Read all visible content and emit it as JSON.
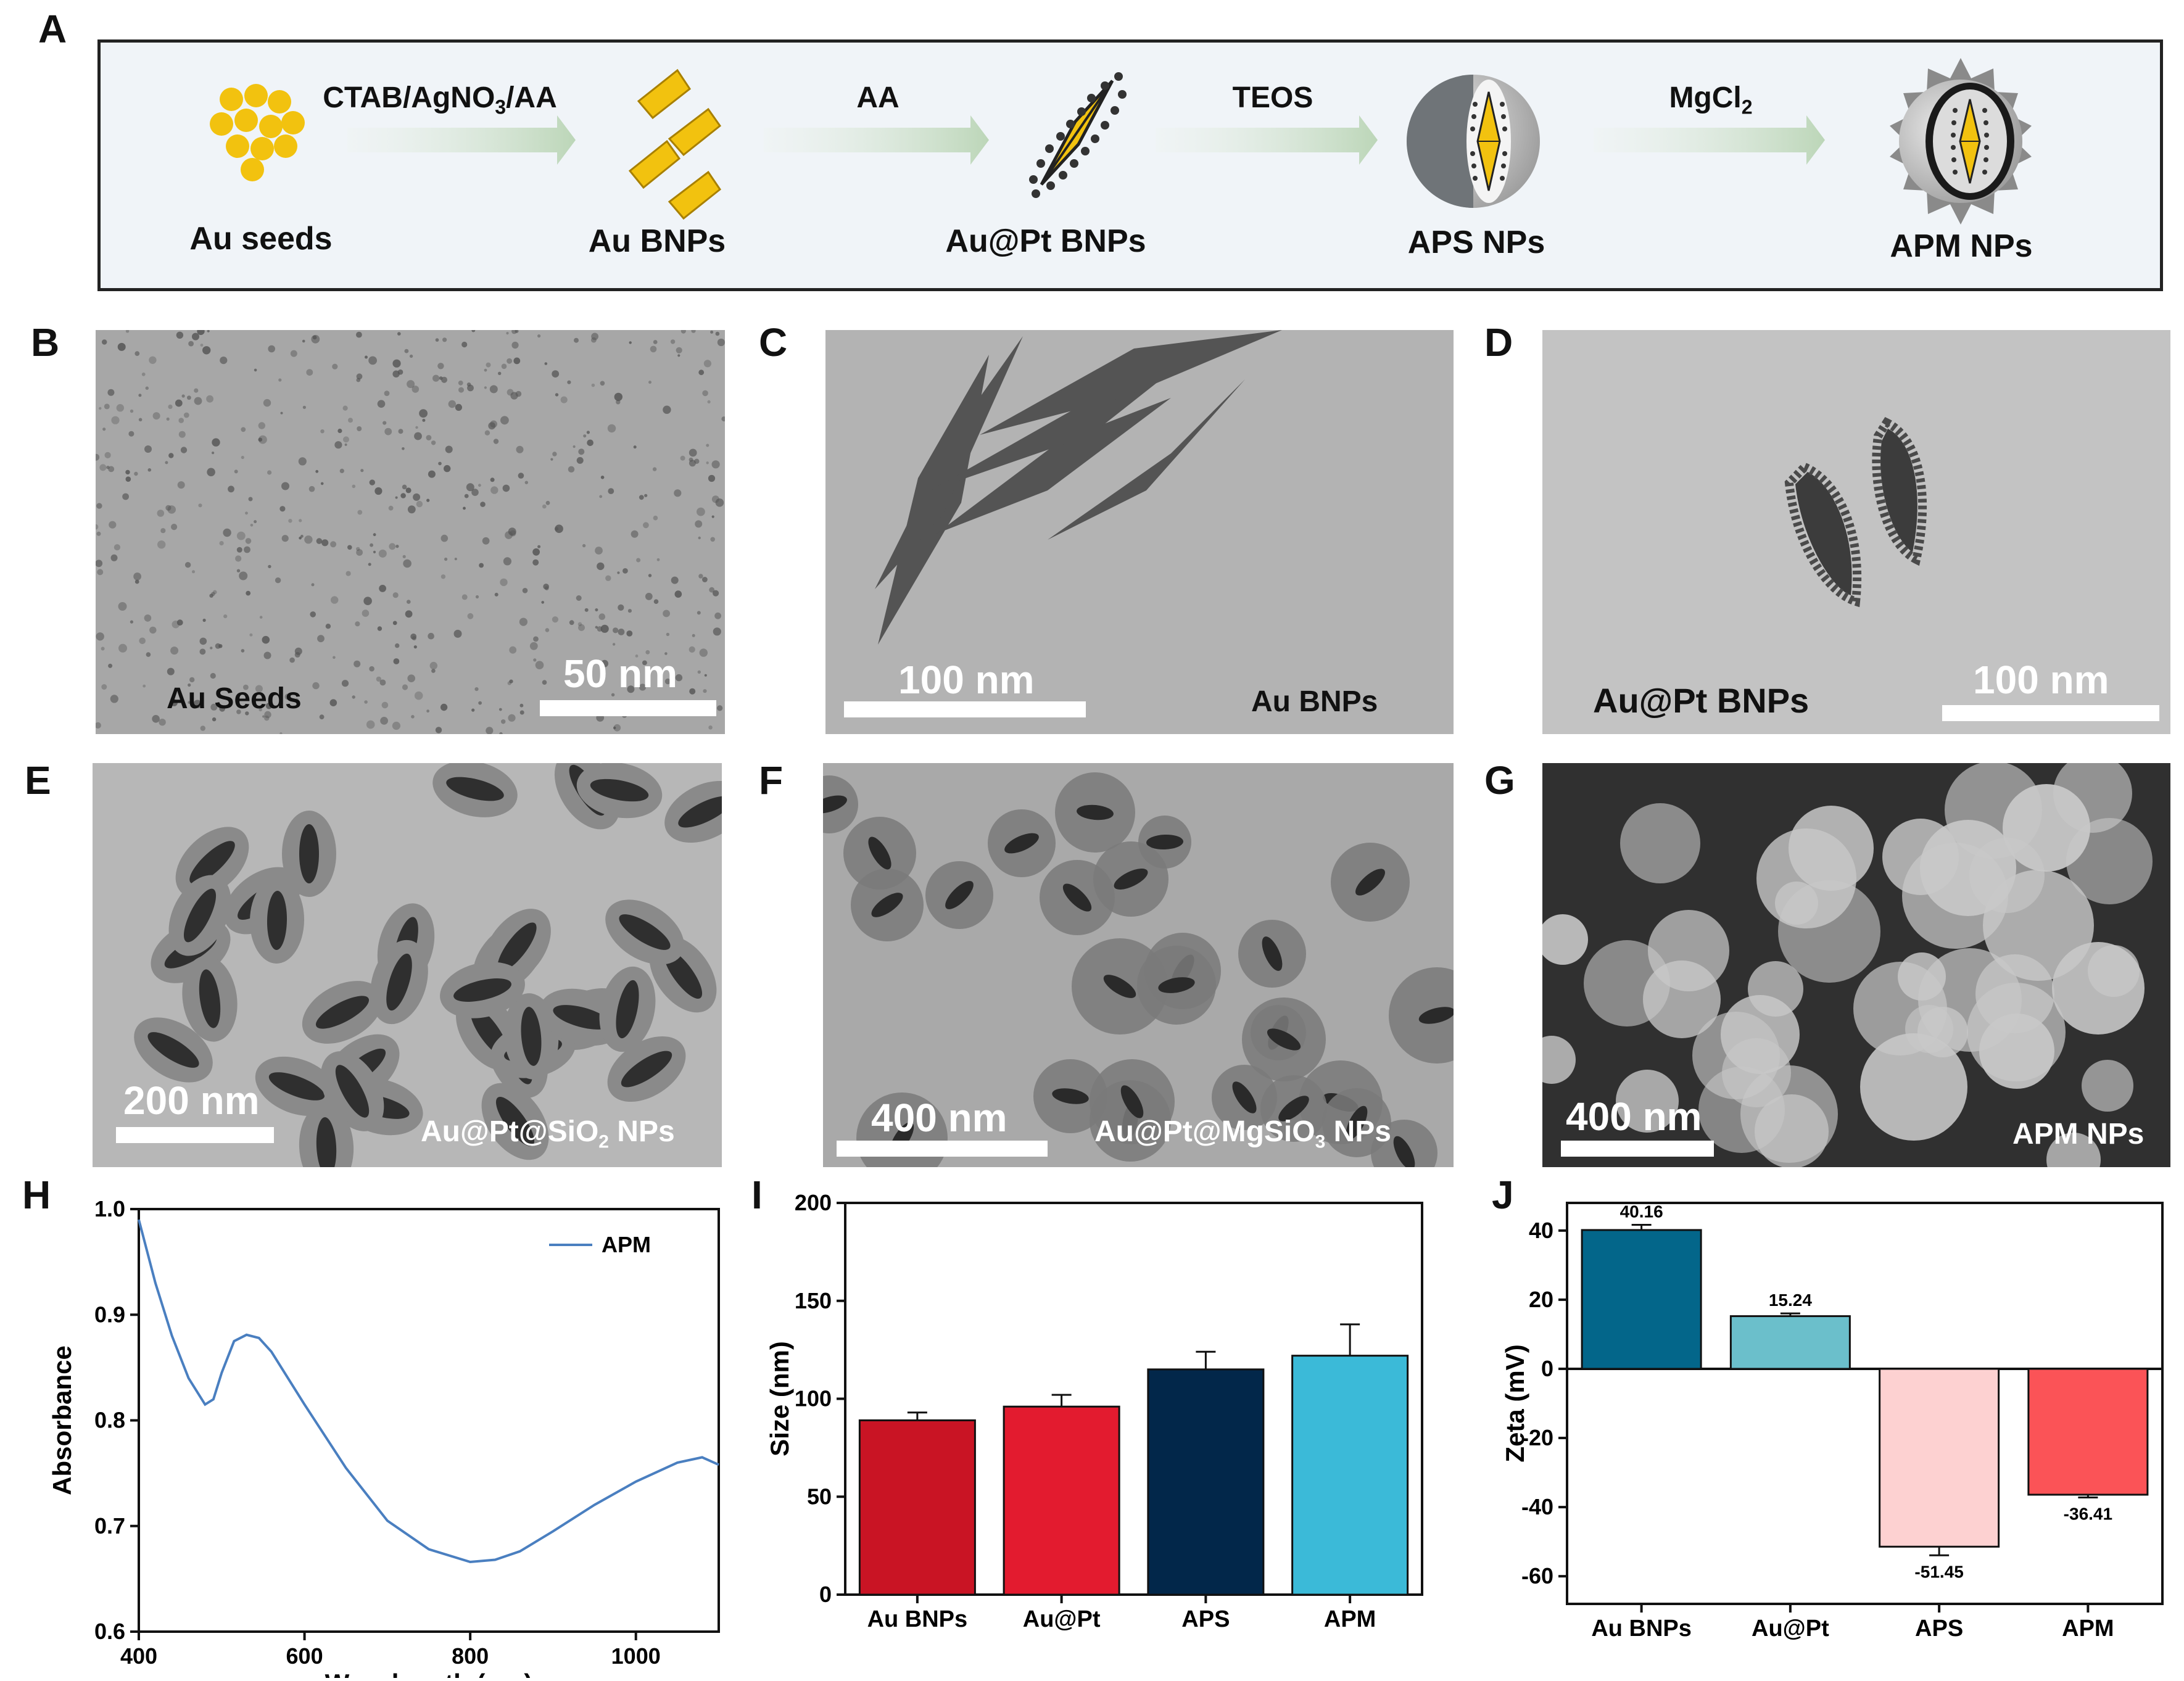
{
  "panels": {
    "A": "A",
    "B": "B",
    "C": "C",
    "D": "D",
    "E": "E",
    "F": "F",
    "G": "G",
    "H": "H",
    "I": "I",
    "J": "J"
  },
  "schematic": {
    "stages": [
      "Au seeds",
      "Au BNPs",
      "Au@Pt BNPs",
      "APS NPs",
      "APM NPs"
    ],
    "steps": [
      {
        "main": "CTAB/AgNO",
        "sub": "3",
        "tail": "/AA"
      },
      {
        "main": "AA",
        "sub": "",
        "tail": ""
      },
      {
        "main": "TEOS",
        "sub": "",
        "tail": ""
      },
      {
        "main": "MgCl",
        "sub": "2",
        "tail": ""
      }
    ],
    "colors": {
      "gold": "#f2c20f",
      "gold_edge": "#a88000",
      "arrow": "#c9dcc6",
      "platinum": "#444444",
      "shell": "#c8c8c8",
      "spikes": "#8a8a8a"
    }
  },
  "images": {
    "B": {
      "scale": "50 nm",
      "caption": "Au Seeds",
      "caption_color": "#111111"
    },
    "C": {
      "scale": "100 nm",
      "caption": "Au BNPs",
      "caption_color": "#111111"
    },
    "D": {
      "scale": "100 nm",
      "caption": "Au@Pt BNPs",
      "caption_color": "#111111"
    },
    "E": {
      "scale": "200 nm",
      "caption_main": "Au@Pt@SiO",
      "caption_sub": "2",
      "caption_tail": " NPs",
      "caption_color": "#ffffff"
    },
    "F": {
      "scale": "400 nm",
      "caption_main": "Au@Pt@MgSiO",
      "caption_sub": "3",
      "caption_tail": " NPs",
      "caption_color": "#ffffff"
    },
    "G": {
      "scale": "400 nm",
      "caption": "APM NPs",
      "caption_color": "#ffffff"
    }
  },
  "chart_data": [
    {
      "panel": "H",
      "type": "line",
      "xlabel": "Wavelength (nm)",
      "ylabel": "Absorbance",
      "xlim": [
        400,
        1100
      ],
      "ylim": [
        0.6,
        1.0
      ],
      "xticks": [
        400,
        600,
        800,
        1000
      ],
      "yticks": [
        0.6,
        0.7,
        0.8,
        0.9,
        1.0
      ],
      "legend_position": "top-right",
      "series": [
        {
          "name": "APM",
          "color": "#4a7fc0",
          "x": [
            400,
            420,
            440,
            460,
            480,
            490,
            500,
            515,
            530,
            545,
            560,
            600,
            650,
            700,
            750,
            800,
            830,
            860,
            900,
            950,
            1000,
            1050,
            1080,
            1100
          ],
          "y": [
            0.99,
            0.93,
            0.88,
            0.84,
            0.815,
            0.82,
            0.845,
            0.875,
            0.881,
            0.878,
            0.865,
            0.815,
            0.755,
            0.705,
            0.678,
            0.666,
            0.668,
            0.676,
            0.695,
            0.72,
            0.742,
            0.76,
            0.765,
            0.758
          ]
        }
      ]
    },
    {
      "panel": "I",
      "type": "bar",
      "ylabel": "Size (nm)",
      "xlabel": "",
      "categories": [
        "Au BNPs",
        "Au@Pt",
        "APS",
        "APM"
      ],
      "values": [
        89,
        96,
        115,
        122
      ],
      "errors": [
        4,
        6,
        9,
        16
      ],
      "colors": [
        "#c91424",
        "#e31b2f",
        "#02274a",
        "#3bbad8"
      ],
      "ylim": [
        0,
        200
      ],
      "yticks": [
        0,
        50,
        100,
        150,
        200
      ]
    },
    {
      "panel": "J",
      "type": "bar",
      "ylabel": "Zeta (mV)",
      "xlabel": "",
      "categories": [
        "Au BNPs",
        "Au@Pt",
        "APS",
        "APM"
      ],
      "values": [
        40.16,
        15.24,
        -51.45,
        -36.41
      ],
      "value_labels": [
        "40.16",
        "15.24",
        "-51.45",
        "-36.41"
      ],
      "errors": [
        1.5,
        0.8,
        2.5,
        0.8
      ],
      "colors": [
        "#03668a",
        "#6bbfcb",
        "#fdd1d1",
        "#fb5357"
      ],
      "ylim": [
        -68,
        48
      ],
      "yticks": [
        -60,
        -40,
        -20,
        0,
        20,
        40
      ]
    }
  ]
}
